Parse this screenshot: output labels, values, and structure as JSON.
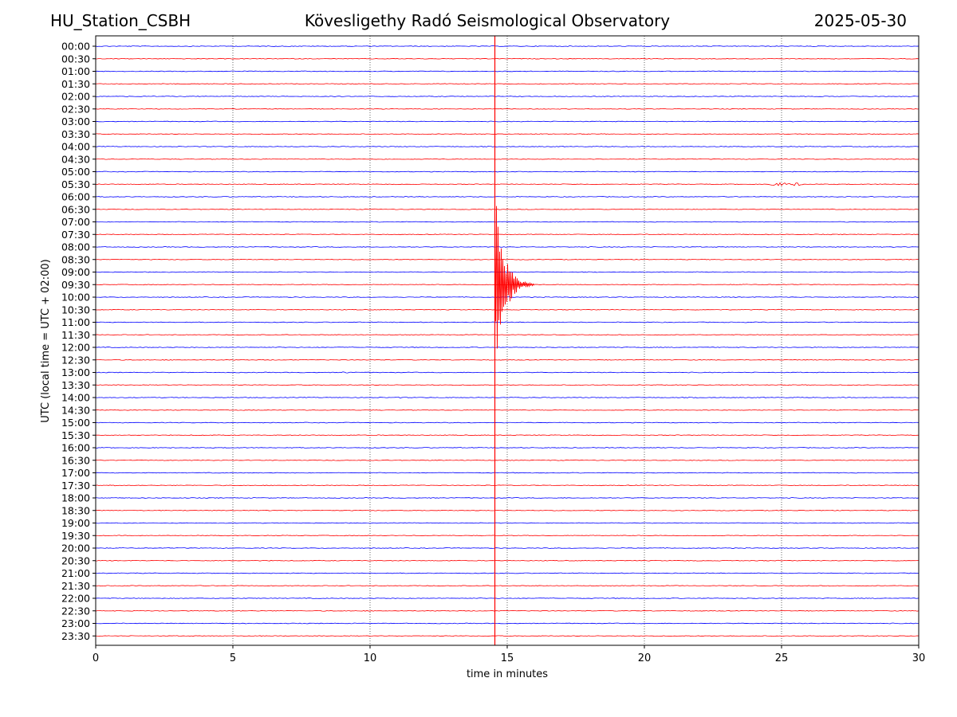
{
  "header": {
    "station": "HU_Station_CSBH",
    "observatory": "Kövesligethy Radó Seismological Observatory",
    "date": "2025-05-30"
  },
  "chart_data": {
    "type": "line",
    "title": "Kövesligethy Radó Seismological Observatory",
    "xlabel": "time in minutes",
    "ylabel": "UTC (local time = UTC + 02:00)",
    "xlim": [
      0,
      30
    ],
    "x_ticks": [
      0,
      5,
      10,
      15,
      20,
      25,
      30
    ],
    "grid": "vertical dotted",
    "row_labels": [
      "00:00",
      "00:30",
      "01:00",
      "01:30",
      "02:00",
      "02:30",
      "03:00",
      "03:30",
      "04:00",
      "04:30",
      "05:00",
      "05:30",
      "06:00",
      "06:30",
      "07:00",
      "07:30",
      "08:00",
      "08:30",
      "09:00",
      "09:30",
      "10:00",
      "10:30",
      "11:00",
      "11:30",
      "12:00",
      "12:30",
      "13:00",
      "13:30",
      "14:00",
      "14:30",
      "15:00",
      "15:30",
      "16:00",
      "16:30",
      "17:00",
      "17:30",
      "18:00",
      "18:30",
      "19:00",
      "19:30",
      "20:00",
      "20:30",
      "21:00",
      "21:30",
      "22:00",
      "22:30",
      "23:00",
      "23:30"
    ],
    "trace_colors": [
      "#0000ff",
      "#ff0000"
    ],
    "event": {
      "row": "09:30",
      "onset_minute": 14.55,
      "peak_amplitude_rows": 7.5,
      "coda_end_minute": 16.0
    },
    "secondary_bursts": [
      {
        "row": "05:30",
        "start_minute": 24.5,
        "end_minute": 25.8,
        "amplitude_rows": 0.12
      },
      {
        "row": "13:00",
        "start_minute": 8.9,
        "end_minute": 9.2,
        "amplitude_rows": 0.06
      },
      {
        "row": "14:00",
        "start_minute": 11.0,
        "end_minute": 11.2,
        "amplitude_rows": 0.06
      },
      {
        "row": "17:30",
        "start_minute": 0.5,
        "end_minute": 0.7,
        "amplitude_rows": 0.05
      }
    ]
  }
}
